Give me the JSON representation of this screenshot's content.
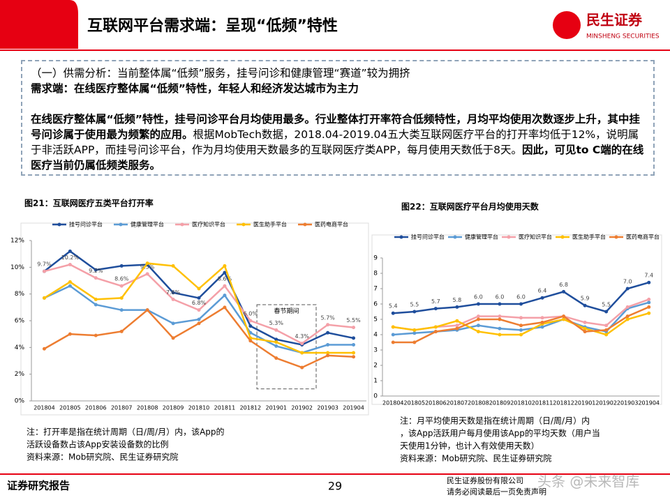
{
  "header": {
    "title": "互联网平台需求端：呈现“低频”特性",
    "logo": "民生证券",
    "logo_en": "MINSHENG SECURITIES"
  },
  "box": {
    "lines": [
      [
        {
          "text": "（一）供需分析：当前整体属“低频”服务，挂号问诊和健康管理“赛道”较为拥挤",
          "bold": false
        }
      ],
      [
        {
          "text": "需求端：在线医疗整体属“低频”特性，年轻人和经济发达城市为主力",
          "bold": true
        }
      ],
      [
        {
          "text": "在线医疗整体属“低频”特性，挂号问诊平台月均使用最多。行业整体打开率符合低频特性，月均平均使用次数逐步上升，其中挂号问诊属于使用最为频繁的应用。",
          "bold": true
        },
        {
          "text": "根据MobTech数据，2018.04-2019.04五大类互联网医疗平台的打开率均低于12%，说明属于非活跃APP，而挂号问诊平台，作为月均使用天数最多的互联网医疗类APP，每月使用天数低于8天。",
          "bold": false
        },
        {
          "text": "因此，可见to C端的在线医疗当前仍属低频类服务。",
          "bold": true
        }
      ]
    ]
  },
  "chart_data": [
    {
      "type": "line",
      "title": "图21：互联网医疗五类平台打开率",
      "categories": [
        "201804",
        "201805",
        "201806",
        "201807",
        "201808",
        "201809",
        "201810",
        "201811",
        "201812",
        "201901",
        "201902",
        "201903",
        "201904"
      ],
      "ylim": [
        0,
        12
      ],
      "yticks": [
        {
          "value": 0,
          "label": "0%"
        },
        {
          "value": 2,
          "label": "2%"
        },
        {
          "value": 4,
          "label": "4%"
        },
        {
          "value": 6,
          "label": "6%"
        },
        {
          "value": 8,
          "label": "8%"
        },
        {
          "value": 10,
          "label": "10%"
        },
        {
          "value": 12,
          "label": "12%"
        }
      ],
      "annotation": "春节期间",
      "series": [
        {
          "name": "挂号问诊平台",
          "color": "#1f4e9c",
          "values": [
            9.7,
            11.2,
            9.8,
            10.1,
            10.2,
            8.1,
            7.7,
            9.6,
            5.6,
            4.6,
            4.2,
            5.1,
            4.7
          ]
        },
        {
          "name": "健康管理平台",
          "color": "#5b9bd5",
          "values": [
            7.7,
            8.6,
            7.2,
            6.8,
            6.8,
            5.8,
            6.1,
            7.9,
            5.1,
            4.1,
            3.6,
            4.2,
            4.2
          ]
        },
        {
          "name": "医疗知识平台",
          "color": "#f4a0a8",
          "values": [
            9.7,
            10.2,
            9.2,
            8.6,
            9.5,
            7.6,
            6.8,
            8.6,
            6.0,
            5.3,
            4.3,
            5.7,
            5.5
          ],
          "value_labels": [
            "9.7%",
            "10.2%",
            "9.2%",
            "8.6%",
            "9.5%",
            "7.6%",
            "6.8%",
            "8.6%",
            "6.0%",
            "5.3%",
            "4.3%",
            "5.7%",
            "5.5%"
          ]
        },
        {
          "name": "医生助手平台",
          "color": "#ffc000",
          "values": [
            7.7,
            8.9,
            7.6,
            7.7,
            10.3,
            10.1,
            8.4,
            10.1,
            4.7,
            4.4,
            3.6,
            3.6,
            3.6
          ]
        },
        {
          "name": "医药电商平台",
          "color": "#ed7d31",
          "values": [
            3.9,
            5.0,
            4.9,
            5.2,
            6.8,
            4.7,
            5.8,
            7.0,
            4.5,
            3.2,
            2.5,
            3.4,
            3.3
          ]
        }
      ],
      "notes": [
        "注：打开率是指在统计周期（日/周/月）内，该App的",
        "活跃设备数占该App安装设备数的比例",
        "资料来源：Mob研究院、民生证券研究院"
      ]
    },
    {
      "type": "line",
      "title": "图22：互联网医疗平台月均使用天数",
      "categories": [
        "201804",
        "201805",
        "201806",
        "201807",
        "201808",
        "201809",
        "201810",
        "201811",
        "201812",
        "201901",
        "201902",
        "201903",
        "201904"
      ],
      "ylim": [
        0,
        9
      ],
      "yticks": [
        0,
        1,
        2,
        3,
        4,
        5,
        6,
        7,
        8,
        9
      ],
      "series": [
        {
          "name": "挂号问诊平台",
          "color": "#1f4e9c",
          "values": [
            5.4,
            5.5,
            5.7,
            5.8,
            6.0,
            6.0,
            6.0,
            6.4,
            6.8,
            5.9,
            5.5,
            7.0,
            7.4
          ],
          "value_labels": [
            "5.4",
            "5.5",
            "5.7",
            "5.8",
            "6.0",
            "6.0",
            "6.0",
            "6.4",
            "6.8",
            "5.9",
            "5.5",
            "7.0",
            "7.4"
          ]
        },
        {
          "name": "健康管理平台",
          "color": "#5b9bd5",
          "values": [
            4.0,
            4.1,
            4.2,
            4.3,
            4.6,
            4.4,
            4.3,
            4.5,
            5.0,
            4.5,
            4.2,
            5.7,
            6.1
          ]
        },
        {
          "name": "医疗知识平台",
          "color": "#f4a0a8",
          "values": [
            4.5,
            4.3,
            4.5,
            4.6,
            5.2,
            5.2,
            5.1,
            5.1,
            5.2,
            4.8,
            4.6,
            5.8,
            6.3
          ]
        },
        {
          "name": "医生助手平台",
          "color": "#ffc000",
          "values": [
            4.5,
            4.3,
            4.5,
            4.9,
            4.2,
            4.0,
            4.0,
            4.7,
            5.0,
            4.4,
            4.0,
            5.0,
            5.4
          ]
        },
        {
          "name": "医药电商平台",
          "color": "#ed7d31",
          "values": [
            3.5,
            3.5,
            4.2,
            4.4,
            5.0,
            5.0,
            4.6,
            4.8,
            5.2,
            4.2,
            4.3,
            5.2,
            5.8
          ]
        }
      ],
      "notes": [
        "注：月平均使用天数是指在统计周期（日/周/月）内",
        "，该App活跃用户每月使用该App的平均天数（用户当",
        "天使用1分钟，也计入有效使用天数）",
        "资料来源：Mob研究院、民生证券研究院"
      ]
    }
  ],
  "footer": {
    "left": "证券研究报告",
    "page": "29",
    "company": "民生证券股份有限公司",
    "disclaimer": "请务必阅读最后一页免责声明",
    "watermark": "头条 @未来智库"
  }
}
